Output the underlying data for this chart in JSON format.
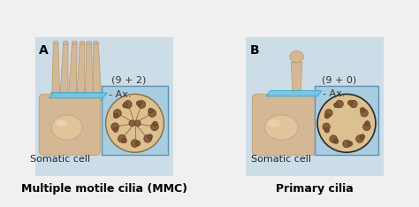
{
  "bg_color": "#d8e8f0",
  "panel_bg": "#c8dce8",
  "cell_color": "#d4b896",
  "cell_edge": "#c4a880",
  "nucleus_color": "#e8d0b0",
  "nucleus_edge": "#c4a880",
  "cilia_color": "#d4b896",
  "cilia_edge": "#b89870",
  "axoneme_color": "#5bc8e8",
  "axoneme_edge": "#3aa8cc",
  "cross_bg": "#e8c88a",
  "cross_outer": "#8a6a40",
  "cross_center": "#8a6a40",
  "panel_border": "#a0b8cc",
  "label_A": "A",
  "label_B": "B",
  "label_ax": "- Ax.",
  "label_formula_A": "(9 + 2)",
  "label_formula_B": "(9 + 0)",
  "label_cell": "Somatic cell",
  "title_A": "Multiple motile cilia (MMC)",
  "title_B": "Primary cilia",
  "title_fontsize": 9,
  "label_fontsize": 8,
  "formula_fontsize": 8,
  "panel_label_fontsize": 10
}
